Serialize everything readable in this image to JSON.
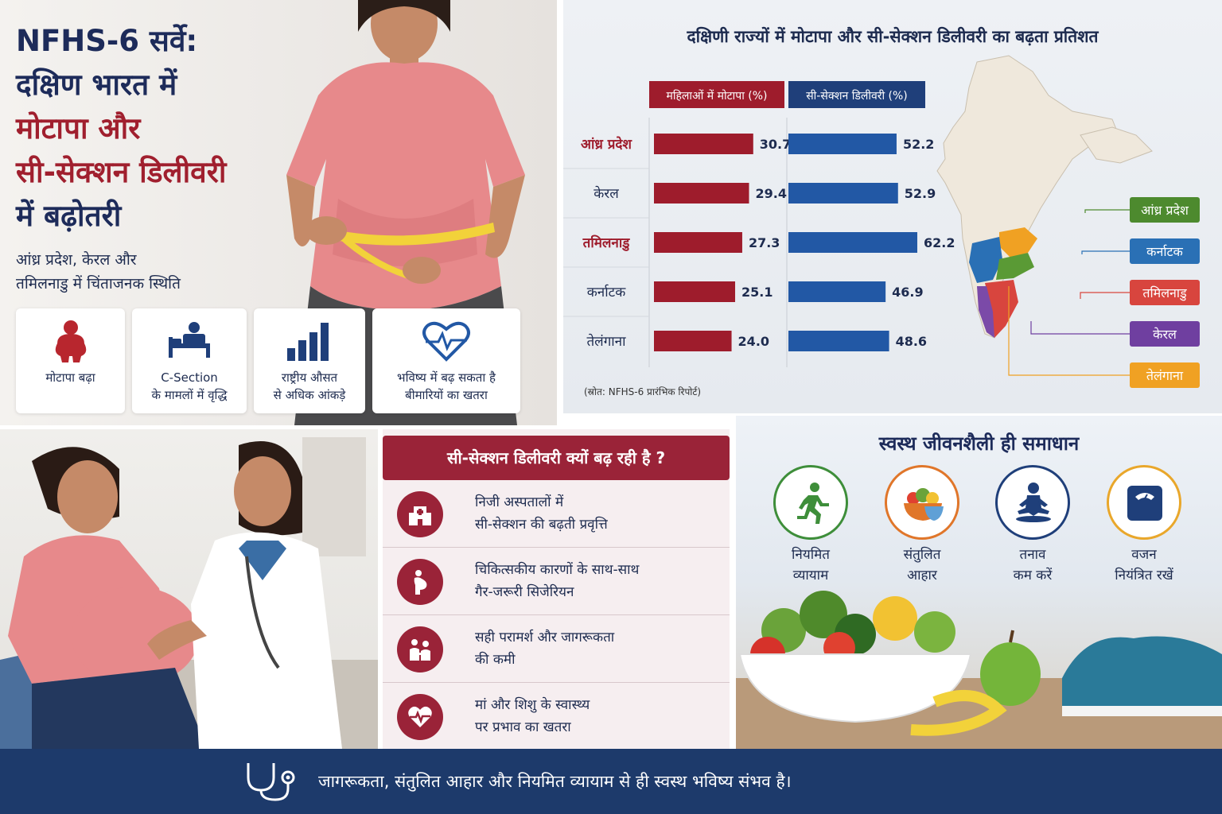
{
  "top_left": {
    "title_lines": [
      "NFHS-6 सर्वे:",
      "दक्षिण भारत में",
      "मोटापा और",
      "सी-सेक्शन डिलीवरी",
      "में बढ़ोतरी"
    ],
    "subtitle_lines": [
      "आंध्र प्रदेश, केरल और",
      "तमिलनाडु में चिंताजनक स्थिति"
    ],
    "cards": [
      {
        "icon": "obesity-person-icon",
        "lines": [
          "मोटापा बढ़ा"
        ]
      },
      {
        "icon": "hospital-bed-icon",
        "lines": [
          "C-Section",
          "के मामलों में वृद्धि"
        ]
      },
      {
        "icon": "bar-chart-icon",
        "lines": [
          "राष्ट्रीय औसत",
          "से अधिक आंकड़े"
        ]
      },
      {
        "icon": "heart-pulse-icon",
        "lines": [
          "भविष्य में बढ़ सकता है",
          "बीमारियों का खतरा"
        ]
      }
    ]
  },
  "chart_data": {
    "type": "bar",
    "title": "दक्षिणी राज्यों में मोटापा और सी-सेक्शन डिलीवरी का बढ़ता प्रतिशत",
    "categories": [
      "आंध्र प्रदेश",
      "केरल",
      "तमिलनाडु",
      "कर्नाटक",
      "तेलंगाना"
    ],
    "highlighted": [
      true,
      false,
      true,
      false,
      false
    ],
    "series": [
      {
        "name": "महिलाओं में मोटापा (%)",
        "values": [
          30.7,
          29.4,
          27.3,
          25.1,
          24.0
        ],
        "color": "#9e1c2c"
      },
      {
        "name": "सी-सेक्शन डिलीवरी (%)",
        "values": [
          52.2,
          52.9,
          62.2,
          46.9,
          48.6
        ],
        "color": "#2258a5"
      }
    ],
    "source": "(स्रोत: NFHS-6 प्रारंभिक रिपोर्ट)",
    "map_legend": [
      {
        "label": "आंध्र प्रदेश",
        "color": "#4d8a2e"
      },
      {
        "label": "कर्नाटक",
        "color": "#2a70b5"
      },
      {
        "label": "तमिलनाडु",
        "color": "#d8453e"
      },
      {
        "label": "केरल",
        "color": "#6f3fa0"
      },
      {
        "label": "तेलंगाना",
        "color": "#f0a123"
      }
    ]
  },
  "why": {
    "title": "सी-सेक्शन डिलीवरी क्यों बढ़ रही है ?",
    "items": [
      {
        "icon": "hospital-building-icon",
        "lines": [
          "निजी अस्पतालों में",
          "सी-सेक्शन की बढ़ती प्रवृत्ति"
        ]
      },
      {
        "icon": "pregnant-woman-icon",
        "lines": [
          "चिकित्सकीय कारणों के साथ-साथ",
          "गैर-जरूरी सिजेरियन"
        ]
      },
      {
        "icon": "counseling-icon",
        "lines": [
          "सही परामर्श और जागरूकता",
          "की कमी"
        ]
      },
      {
        "icon": "heart-pulse-icon",
        "lines": [
          "मां और शिशु के स्वास्थ्य",
          "पर प्रभाव का खतरा"
        ]
      }
    ]
  },
  "lifestyle": {
    "title": "स्वस्थ जीवनशैली ही समाधान",
    "items": [
      {
        "icon": "running-person-icon",
        "color": "#3e8e3a",
        "lines": [
          "नियमित",
          "व्यायाम"
        ]
      },
      {
        "icon": "salad-bowl-icon",
        "color": "#e0762a",
        "lines": [
          "संतुलित",
          "आहार"
        ]
      },
      {
        "icon": "meditation-icon",
        "color": "#1f3f7a",
        "lines": [
          "तनाव",
          "कम करें"
        ]
      },
      {
        "icon": "weighing-scale-icon",
        "color": "#e9a72b",
        "lines": [
          "वजन",
          "नियंत्रित रखें"
        ]
      }
    ]
  },
  "footer": {
    "icon": "stethoscope-icon",
    "text": "जागरूकता, संतुलित आहार और नियमित व्यायाम से ही स्वस्थ भविष्य संभव है।"
  }
}
